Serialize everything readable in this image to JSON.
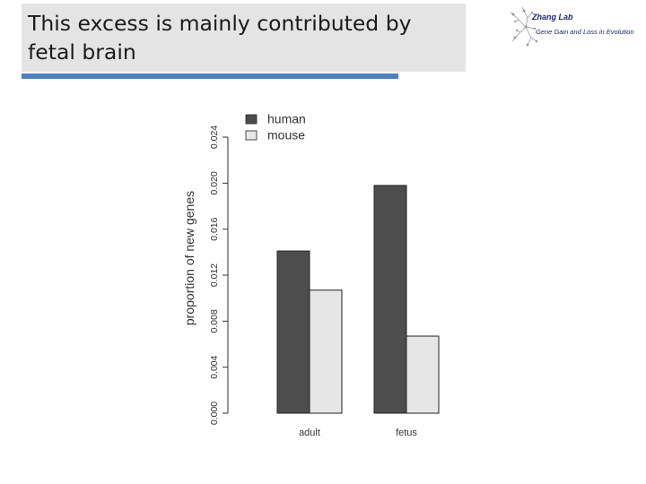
{
  "slide": {
    "title": "This excess is mainly contributed by fetal brain"
  },
  "logo": {
    "name": "Zhang Lab",
    "tagline": "Gene Gain and Loss in Evolution"
  },
  "colors": {
    "title_box": "#e4e4e4",
    "accent_rule": "#4f81bd",
    "human": "#4d4d4d",
    "mouse": "#e6e6e6"
  },
  "chart_data": {
    "type": "bar",
    "title": "",
    "xlabel": "",
    "ylabel": "proportion of new genes",
    "categories": [
      "adult",
      "fetus"
    ],
    "series": [
      {
        "name": "human",
        "values": [
          0.0141,
          0.0198
        ]
      },
      {
        "name": "mouse",
        "values": [
          0.0107,
          0.0067
        ]
      }
    ],
    "ylim": [
      0,
      0.024
    ],
    "yticks": [
      "0.000",
      "0.004",
      "0.008",
      "0.012",
      "0.016",
      "0.020",
      "0.024"
    ],
    "legend": "top-left",
    "grid": false
  }
}
